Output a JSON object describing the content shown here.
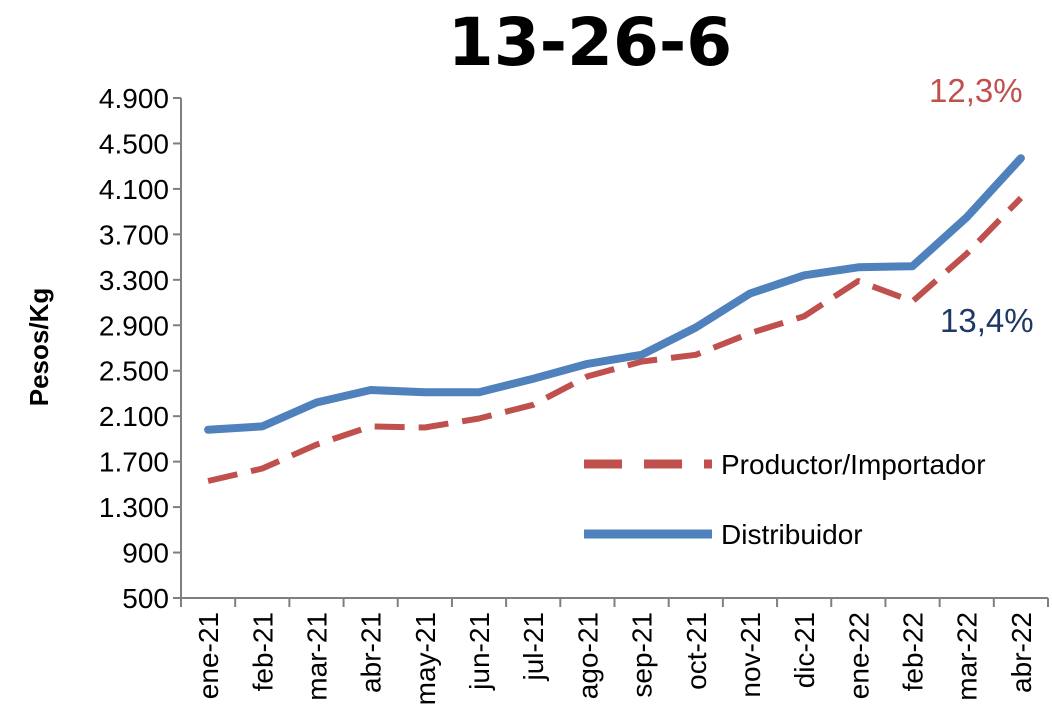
{
  "chart_data": {
    "type": "line",
    "title": "13-26-6",
    "ylabel": "Pesos/Kg",
    "xlabel": "",
    "categories": [
      "ene-21",
      "feb-21",
      "mar-21",
      "abr-21",
      "may-21",
      "jun-21",
      "jul-21",
      "ago-21",
      "sep-21",
      "oct-21",
      "nov-21",
      "dic-21",
      "ene-22",
      "feb-22",
      "mar-22",
      "abr-22"
    ],
    "y_ticks": [
      "500",
      "900",
      "1.300",
      "1.700",
      "2.100",
      "2.500",
      "2.900",
      "3.300",
      "3.700",
      "4.100",
      "4.500",
      "4.900"
    ],
    "ylim": [
      500,
      4900
    ],
    "grid": false,
    "legend_position": "right",
    "series": [
      {
        "name": "Productor/Importador",
        "color": "#C0504D",
        "style": "dashed",
        "values": [
          1530,
          1640,
          1850,
          2010,
          2000,
          2080,
          2200,
          2450,
          2580,
          2640,
          2830,
          2980,
          3290,
          3110,
          3530,
          4020
        ]
      },
      {
        "name": "Distribuidor",
        "color": "#4F81BD",
        "style": "solid",
        "values": [
          1980,
          2010,
          2220,
          2330,
          2310,
          2310,
          2430,
          2560,
          2640,
          2880,
          3180,
          3340,
          3410,
          3420,
          3850,
          4370
        ]
      }
    ],
    "annotations": [
      {
        "text": "12,3%",
        "color": "#C0504D"
      },
      {
        "text": "13,4%",
        "color": "#1F3864"
      }
    ]
  }
}
